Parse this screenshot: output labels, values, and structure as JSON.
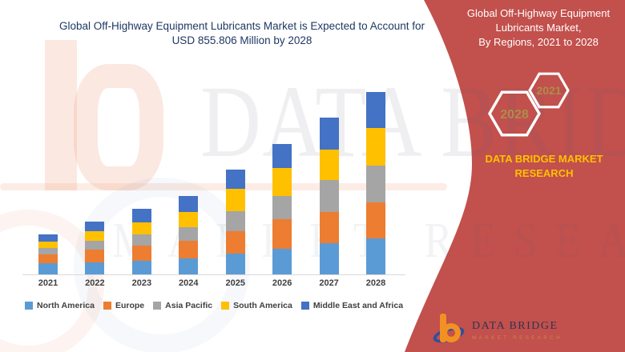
{
  "left_section": {
    "title_line1": "Global Off-Highway Equipment Lubricants Market is Expected to Account for",
    "title_line2": "USD 855.806 Million by 2028",
    "title_color": "#1F3864"
  },
  "chart_data": {
    "type": "bar",
    "stacked": true,
    "unit": "USD Million",
    "title": "Global Off-Highway Equipment Lubricants Market, By Regions, 2021 to 2028",
    "categories": [
      "2021",
      "2022",
      "2023",
      "2024",
      "2025",
      "2026",
      "2027",
      "2028"
    ],
    "series": [
      {
        "name": "North America",
        "color": "#5B9BD5",
        "values": [
          52,
          55,
          65,
          75,
          98,
          122,
          148,
          170
        ]
      },
      {
        "name": "Europe",
        "color": "#ED7D31",
        "values": [
          40,
          62,
          72,
          84,
          104,
          136,
          146,
          168
        ]
      },
      {
        "name": "Asia Pacific",
        "color": "#A5A5A5",
        "values": [
          30,
          40,
          50,
          64,
          96,
          112,
          150,
          172
        ]
      },
      {
        "name": "South America",
        "color": "#FFC000",
        "values": [
          32,
          44,
          56,
          71,
          102,
          130,
          142,
          178
        ]
      },
      {
        "name": "Middle East and Africa",
        "color": "#4472C4",
        "values": [
          34,
          47,
          65,
          74,
          90,
          112,
          149,
          167.806
        ]
      }
    ],
    "totals": [
      188,
      248,
      308,
      368,
      490,
      612,
      735,
      855.806
    ],
    "ylim": [
      0,
      900
    ],
    "grid": false,
    "legend_position": "bottom",
    "xlabel": "",
    "ylabel": ""
  },
  "watermark": {
    "row1": "DATA BRIDGE",
    "row2": "MARKET RESEARCH"
  },
  "right_panel": {
    "background_color": "#C2504C",
    "title_line1": "Global Off-Highway Equipment",
    "title_line2": "Lubricants Market,",
    "title_line3": "By Regions, 2021 to 2028",
    "hexagons": [
      {
        "label": "2028"
      },
      {
        "label": "2021"
      }
    ],
    "hexagon_label_color": "#AD8D4D",
    "brand_line1": "DATA BRIDGE MARKET",
    "brand_line2": "RESEARCH",
    "brand_color": "#FFC000",
    "logo": {
      "name_text": "DATA BRIDGE",
      "sub_text": "MARKET RESEARCH"
    }
  }
}
